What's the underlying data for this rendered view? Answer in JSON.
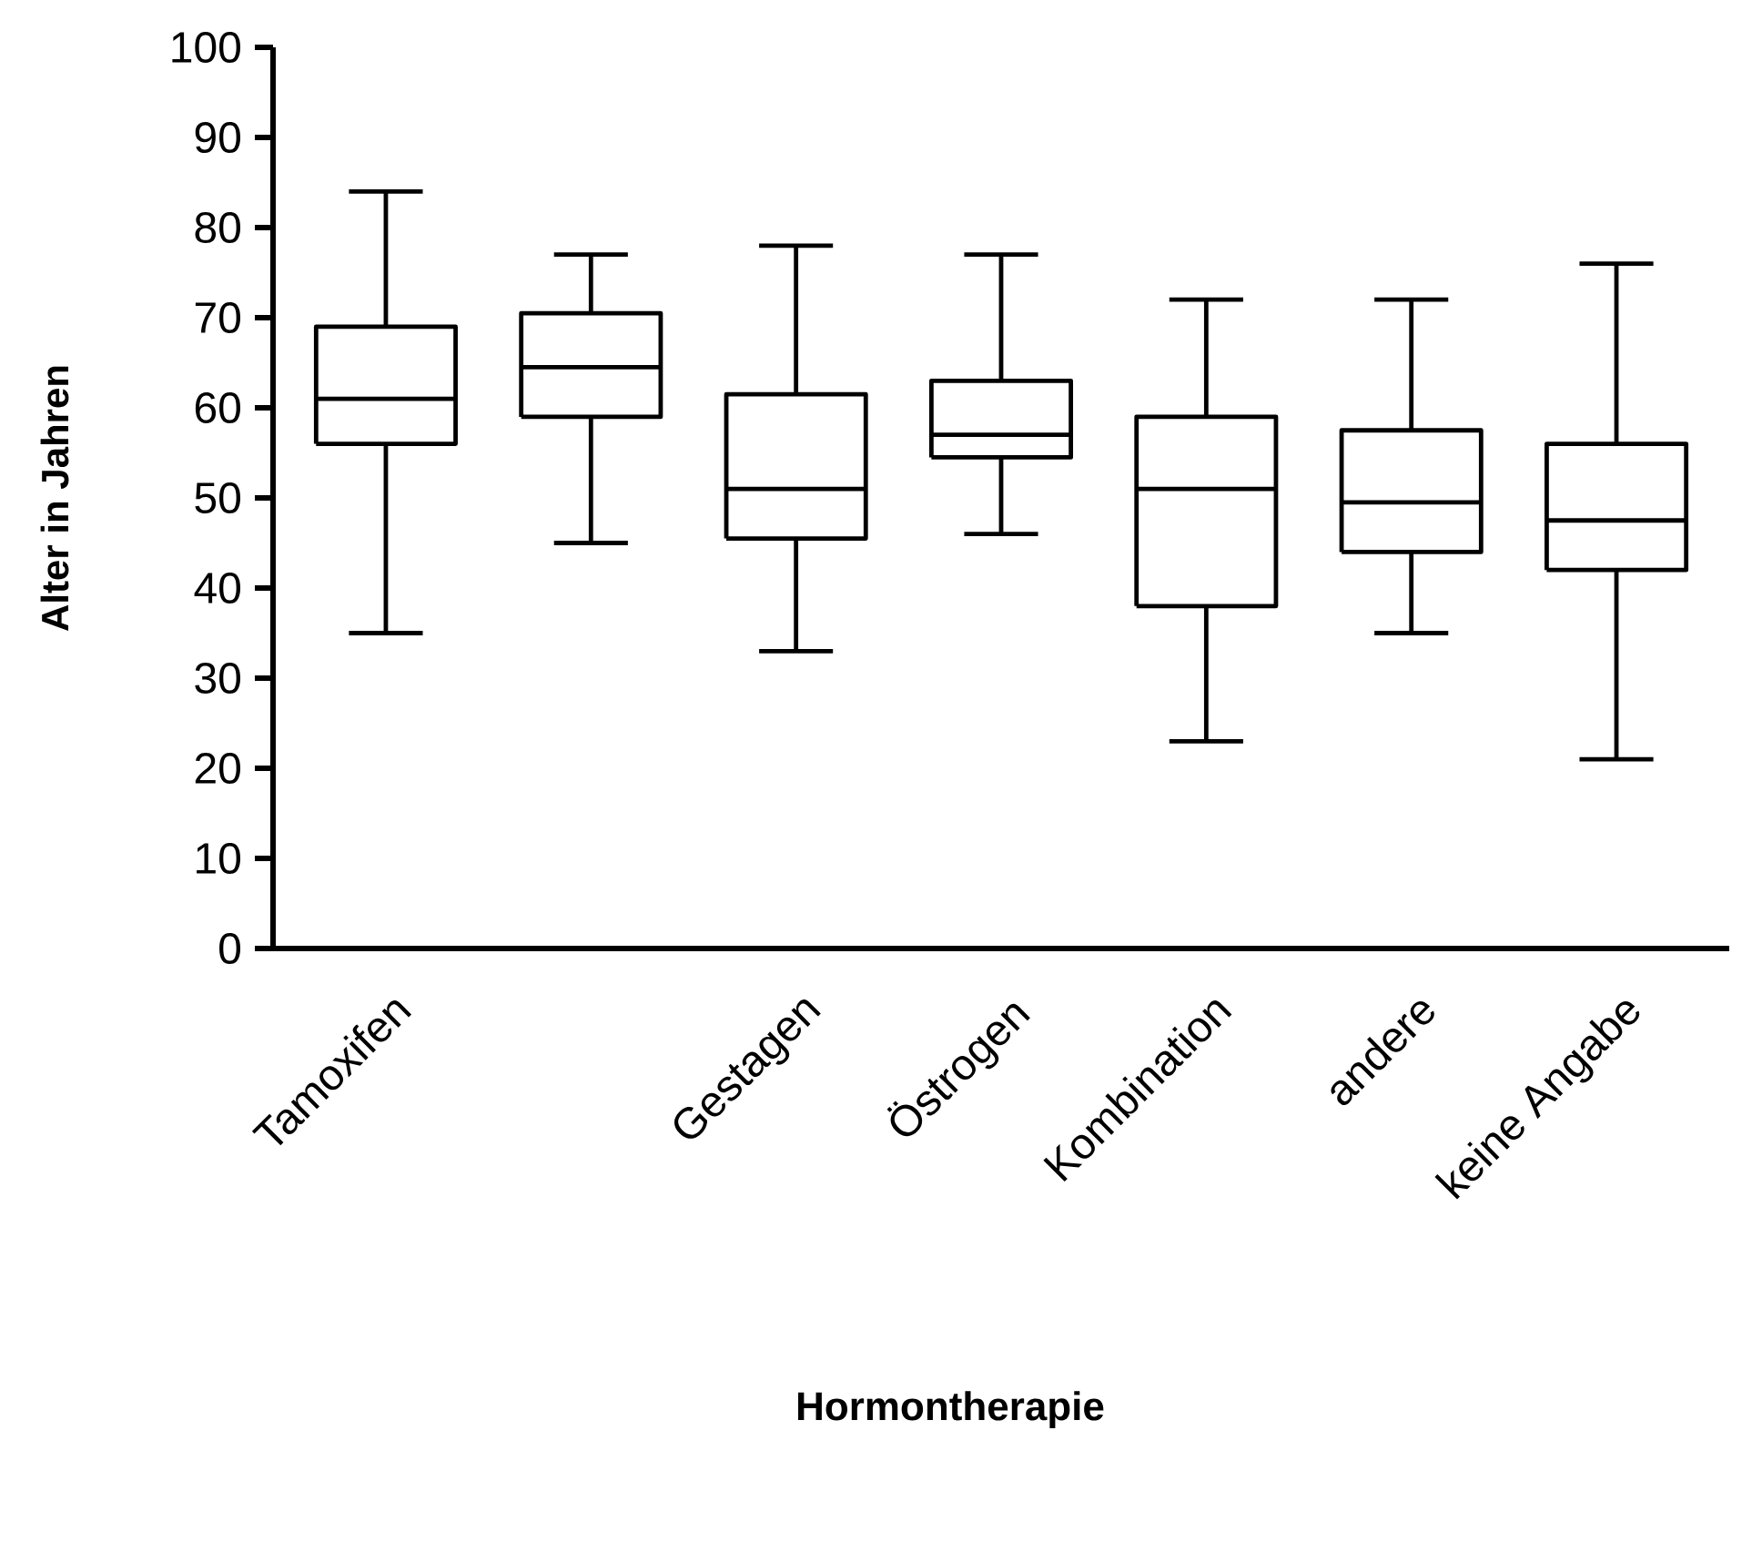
{
  "chart_data": {
    "type": "box",
    "xlabel": "Hormontherapie",
    "ylabel": "Alter in Jahren",
    "categories": [
      "Tamoxifen",
      null,
      "Gestagen",
      "Östrogen",
      "Kombination",
      "andere",
      "keine Angabe"
    ],
    "boxes": [
      {
        "low": 35,
        "q1": 56,
        "median": 61,
        "q3": 69,
        "high": 84
      },
      {
        "low": 45,
        "q1": 59,
        "median": 64.5,
        "q3": 70.5,
        "high": 77
      },
      {
        "low": 33,
        "q1": 45.5,
        "median": 51,
        "q3": 61.5,
        "high": 78
      },
      {
        "low": 46,
        "q1": 54.5,
        "median": 57,
        "q3": 63,
        "high": 77
      },
      {
        "low": 23,
        "q1": 38,
        "median": 51,
        "q3": 59,
        "high": 72
      },
      {
        "low": 35,
        "q1": 44,
        "median": 49.5,
        "q3": 57.5,
        "high": 72
      },
      {
        "low": 21,
        "q1": 42,
        "median": 47.5,
        "q3": 56,
        "high": 76
      }
    ],
    "ylim": [
      0,
      100
    ],
    "yticks": [
      0,
      10,
      20,
      30,
      40,
      50,
      60,
      70,
      80,
      90,
      100
    ]
  }
}
